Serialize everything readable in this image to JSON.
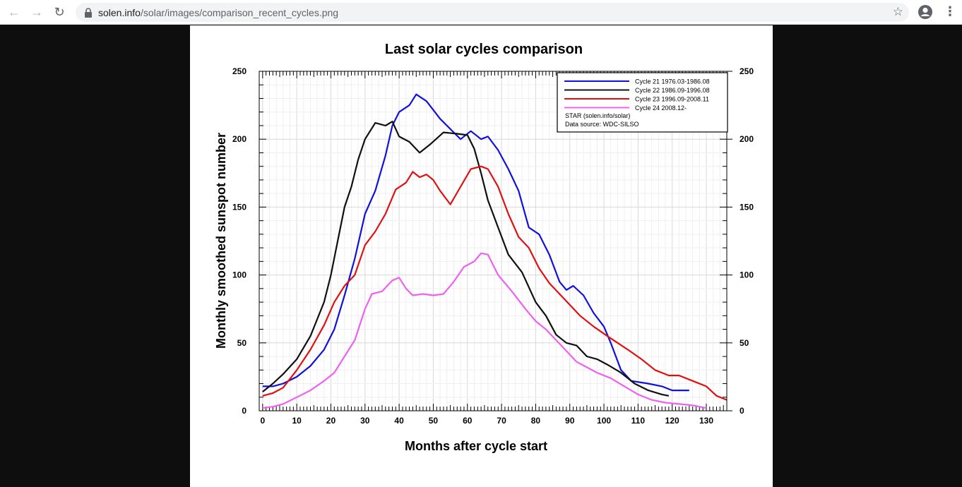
{
  "browser": {
    "url_domain": "solen.info",
    "url_path": "/solar/images/comparison_recent_cycles.png",
    "back_icon": "←",
    "forward_icon": "→",
    "reload_icon": "↻",
    "star_icon": "☆",
    "menu_icon": "⋮"
  },
  "chart_data": {
    "type": "line",
    "title": "Last solar cycles comparison",
    "xlabel": "Months after cycle start",
    "ylabel": "Monthly smoothed sunspot number",
    "xlim": [
      -1,
      136
    ],
    "ylim": [
      0,
      250
    ],
    "x_ticks": [
      0,
      10,
      20,
      30,
      40,
      50,
      60,
      70,
      80,
      90,
      100,
      110,
      120,
      130
    ],
    "y_ticks": [
      0,
      50,
      100,
      150,
      200,
      250
    ],
    "grid": true,
    "legend_position": "top-right",
    "legend_notes": [
      "STAR (solen.info/solar)",
      "Data source: WDC-SILSO"
    ],
    "series": [
      {
        "name": "Cycle 21 1976.03-1986.08",
        "color": "#1010e0",
        "points": [
          [
            0,
            18
          ],
          [
            3,
            18
          ],
          [
            6,
            20
          ],
          [
            10,
            25
          ],
          [
            14,
            33
          ],
          [
            18,
            45
          ],
          [
            21,
            60
          ],
          [
            24,
            85
          ],
          [
            27,
            112
          ],
          [
            30,
            145
          ],
          [
            33,
            162
          ],
          [
            36,
            188
          ],
          [
            38,
            210
          ],
          [
            40,
            220
          ],
          [
            43,
            225
          ],
          [
            45,
            233
          ],
          [
            48,
            228
          ],
          [
            52,
            215
          ],
          [
            56,
            205
          ],
          [
            58,
            200
          ],
          [
            61,
            206
          ],
          [
            64,
            200
          ],
          [
            66,
            202
          ],
          [
            69,
            192
          ],
          [
            72,
            178
          ],
          [
            75,
            162
          ],
          [
            78,
            135
          ],
          [
            81,
            130
          ],
          [
            84,
            115
          ],
          [
            87,
            95
          ],
          [
            89,
            89
          ],
          [
            91,
            92
          ],
          [
            94,
            85
          ],
          [
            97,
            72
          ],
          [
            100,
            62
          ],
          [
            102,
            50
          ],
          [
            105,
            30
          ],
          [
            108,
            22
          ],
          [
            113,
            20
          ],
          [
            117,
            18
          ],
          [
            120,
            15
          ],
          [
            125,
            15
          ]
        ]
      },
      {
        "name": "Cycle 22 1986.09-1996.08",
        "color": "#101010",
        "points": [
          [
            0,
            14
          ],
          [
            3,
            20
          ],
          [
            6,
            27
          ],
          [
            10,
            38
          ],
          [
            14,
            55
          ],
          [
            18,
            80
          ],
          [
            20,
            100
          ],
          [
            22,
            125
          ],
          [
            24,
            150
          ],
          [
            26,
            165
          ],
          [
            28,
            185
          ],
          [
            30,
            200
          ],
          [
            33,
            212
          ],
          [
            36,
            210
          ],
          [
            38,
            213
          ],
          [
            40,
            202
          ],
          [
            43,
            198
          ],
          [
            46,
            190
          ],
          [
            49,
            196
          ],
          [
            53,
            205
          ],
          [
            57,
            204
          ],
          [
            60,
            203
          ],
          [
            62,
            193
          ],
          [
            64,
            175
          ],
          [
            66,
            155
          ],
          [
            69,
            135
          ],
          [
            72,
            115
          ],
          [
            76,
            102
          ],
          [
            80,
            80
          ],
          [
            83,
            70
          ],
          [
            86,
            56
          ],
          [
            89,
            50
          ],
          [
            92,
            48
          ],
          [
            95,
            40
          ],
          [
            98,
            38
          ],
          [
            101,
            34
          ],
          [
            105,
            28
          ],
          [
            109,
            20
          ],
          [
            113,
            15
          ],
          [
            117,
            12
          ],
          [
            119,
            11
          ]
        ]
      },
      {
        "name": "Cycle 23 1996.09-2008.11",
        "color": "#e01010",
        "points": [
          [
            0,
            11
          ],
          [
            3,
            13
          ],
          [
            6,
            17
          ],
          [
            10,
            30
          ],
          [
            14,
            45
          ],
          [
            18,
            63
          ],
          [
            21,
            80
          ],
          [
            24,
            92
          ],
          [
            27,
            100
          ],
          [
            30,
            122
          ],
          [
            33,
            132
          ],
          [
            36,
            145
          ],
          [
            39,
            163
          ],
          [
            42,
            168
          ],
          [
            44,
            176
          ],
          [
            46,
            172
          ],
          [
            48,
            174
          ],
          [
            50,
            170
          ],
          [
            52,
            162
          ],
          [
            55,
            152
          ],
          [
            58,
            165
          ],
          [
            61,
            178
          ],
          [
            64,
            180
          ],
          [
            66,
            178
          ],
          [
            69,
            165
          ],
          [
            72,
            145
          ],
          [
            75,
            128
          ],
          [
            78,
            120
          ],
          [
            81,
            105
          ],
          [
            84,
            94
          ],
          [
            87,
            86
          ],
          [
            90,
            78
          ],
          [
            93,
            70
          ],
          [
            97,
            62
          ],
          [
            101,
            55
          ],
          [
            104,
            50
          ],
          [
            107,
            45
          ],
          [
            111,
            38
          ],
          [
            115,
            30
          ],
          [
            119,
            26
          ],
          [
            122,
            26
          ],
          [
            126,
            22
          ],
          [
            130,
            18
          ],
          [
            133,
            11
          ],
          [
            136,
            8
          ]
        ]
      },
      {
        "name": "Cycle 24 2008.12-",
        "color": "#f060f0",
        "points": [
          [
            0,
            2
          ],
          [
            3,
            3
          ],
          [
            6,
            5
          ],
          [
            10,
            10
          ],
          [
            14,
            15
          ],
          [
            18,
            22
          ],
          [
            21,
            28
          ],
          [
            24,
            40
          ],
          [
            27,
            52
          ],
          [
            30,
            75
          ],
          [
            32,
            86
          ],
          [
            35,
            88
          ],
          [
            38,
            96
          ],
          [
            40,
            98
          ],
          [
            42,
            90
          ],
          [
            44,
            85
          ],
          [
            47,
            86
          ],
          [
            50,
            85
          ],
          [
            53,
            86
          ],
          [
            56,
            95
          ],
          [
            59,
            106
          ],
          [
            62,
            110
          ],
          [
            64,
            116
          ],
          [
            66,
            115
          ],
          [
            69,
            100
          ],
          [
            73,
            88
          ],
          [
            77,
            75
          ],
          [
            80,
            66
          ],
          [
            83,
            60
          ],
          [
            86,
            52
          ],
          [
            89,
            44
          ],
          [
            92,
            36
          ],
          [
            95,
            32
          ],
          [
            98,
            28
          ],
          [
            102,
            24
          ],
          [
            106,
            18
          ],
          [
            110,
            12
          ],
          [
            114,
            8
          ],
          [
            118,
            6
          ],
          [
            122,
            5
          ],
          [
            126,
            4
          ],
          [
            130,
            2
          ]
        ]
      }
    ]
  }
}
